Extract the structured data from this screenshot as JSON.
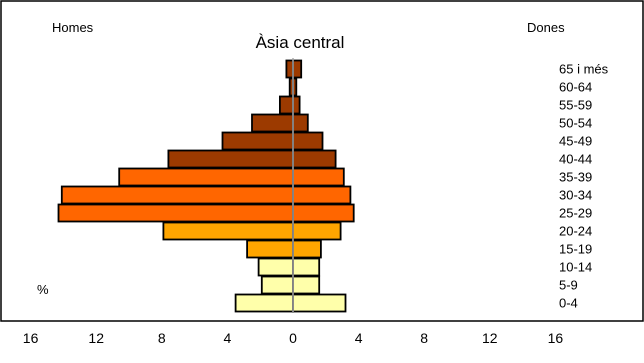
{
  "chart_data": {
    "type": "bar",
    "orientation": "horizontal",
    "layout": "population-pyramid",
    "title": "Àsia central",
    "left_label": "Homes",
    "right_label": "Dones",
    "unit_label": "%",
    "xlim": [
      -16,
      16
    ],
    "x_ticks": [
      -16,
      -12,
      -8,
      -4,
      0,
      4,
      8,
      12,
      16
    ],
    "x_tick_labels": [
      "16",
      "12",
      "8",
      "4",
      "0",
      "4",
      "8",
      "12",
      "16"
    ],
    "categories": [
      "0-4",
      "5-9",
      "10-14",
      "15-19",
      "20-24",
      "25-29",
      "30-34",
      "35-39",
      "40-44",
      "45-49",
      "50-54",
      "55-59",
      "60-64",
      "65 i més"
    ],
    "series": [
      {
        "name": "Homes",
        "side": "left",
        "values": [
          3.5,
          1.9,
          2.1,
          2.8,
          7.9,
          14.3,
          14.1,
          10.6,
          7.6,
          4.3,
          2.5,
          0.8,
          0.2,
          0.4
        ]
      },
      {
        "name": "Dones",
        "side": "right",
        "values": [
          3.2,
          1.6,
          1.6,
          1.7,
          2.9,
          3.7,
          3.5,
          3.1,
          2.6,
          1.8,
          0.9,
          0.4,
          0.2,
          0.5
        ]
      }
    ],
    "colors": [
      "#FFFFAA",
      "#FFFFAA",
      "#FFFFAA",
      "#FFA500",
      "#FFA500",
      "#FF6600",
      "#FF6600",
      "#FF6600",
      "#9C3A00",
      "#9C3A00",
      "#9C3A00",
      "#9C3A00",
      "#9C3A00",
      "#9C3A00"
    ],
    "center_line_color": "#aaaaaa",
    "grid": false,
    "legend": "none"
  }
}
